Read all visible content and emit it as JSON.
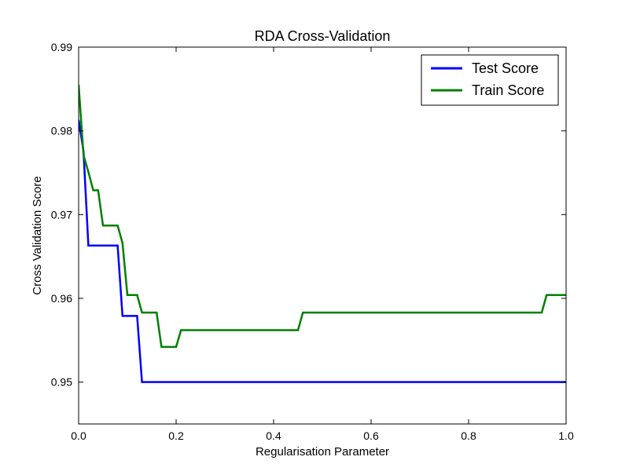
{
  "chart_data": {
    "type": "line",
    "title": "RDA Cross-Validation",
    "xlabel": "Regularisation Parameter",
    "ylabel": "Cross Validation Score",
    "xlim": [
      0.0,
      1.0
    ],
    "ylim": [
      0.945,
      0.99
    ],
    "xticks": [
      0.0,
      0.2,
      0.4,
      0.6,
      0.8,
      1.0
    ],
    "xtick_labels": [
      "0.0",
      "0.2",
      "0.4",
      "0.6",
      "0.8",
      "1.0"
    ],
    "yticks": [
      0.95,
      0.96,
      0.97,
      0.98,
      0.99
    ],
    "ytick_labels": [
      "0.95",
      "0.96",
      "0.97",
      "0.98",
      "0.99"
    ],
    "grid": false,
    "legend_position": "top-right",
    "series": [
      {
        "name": "Test Score",
        "color": "#0000ff",
        "x": [
          0.0,
          0.01,
          0.02,
          0.03,
          0.04,
          0.05,
          0.06,
          0.07,
          0.08,
          0.09,
          0.1,
          0.11,
          0.12,
          0.13,
          0.14,
          0.15,
          0.2,
          0.3,
          0.4,
          0.5,
          0.6,
          0.7,
          0.8,
          0.9,
          1.0
        ],
        "y": [
          0.9813,
          0.9776,
          0.9663,
          0.9663,
          0.9663,
          0.9663,
          0.9663,
          0.9663,
          0.9663,
          0.9579,
          0.9579,
          0.9579,
          0.9579,
          0.95,
          0.95,
          0.95,
          0.95,
          0.95,
          0.95,
          0.95,
          0.95,
          0.95,
          0.95,
          0.95,
          0.95
        ]
      },
      {
        "name": "Train Score",
        "color": "#008000",
        "x": [
          0.0,
          0.01,
          0.02,
          0.03,
          0.04,
          0.05,
          0.06,
          0.07,
          0.08,
          0.09,
          0.1,
          0.11,
          0.12,
          0.13,
          0.14,
          0.15,
          0.16,
          0.17,
          0.18,
          0.19,
          0.2,
          0.21,
          0.22,
          0.25,
          0.3,
          0.35,
          0.4,
          0.45,
          0.46,
          0.5,
          0.6,
          0.7,
          0.8,
          0.9,
          0.95,
          0.96,
          1.0
        ],
        "y": [
          0.9855,
          0.9771,
          0.9751,
          0.9729,
          0.9729,
          0.9687,
          0.9687,
          0.9687,
          0.9687,
          0.9666,
          0.9604,
          0.9604,
          0.9604,
          0.9583,
          0.9583,
          0.9583,
          0.9583,
          0.9542,
          0.9542,
          0.9542,
          0.9542,
          0.9562,
          0.9562,
          0.9562,
          0.9562,
          0.9562,
          0.9562,
          0.9562,
          0.9583,
          0.9583,
          0.9583,
          0.9583,
          0.9583,
          0.9583,
          0.9583,
          0.9604,
          0.9604
        ]
      }
    ]
  }
}
